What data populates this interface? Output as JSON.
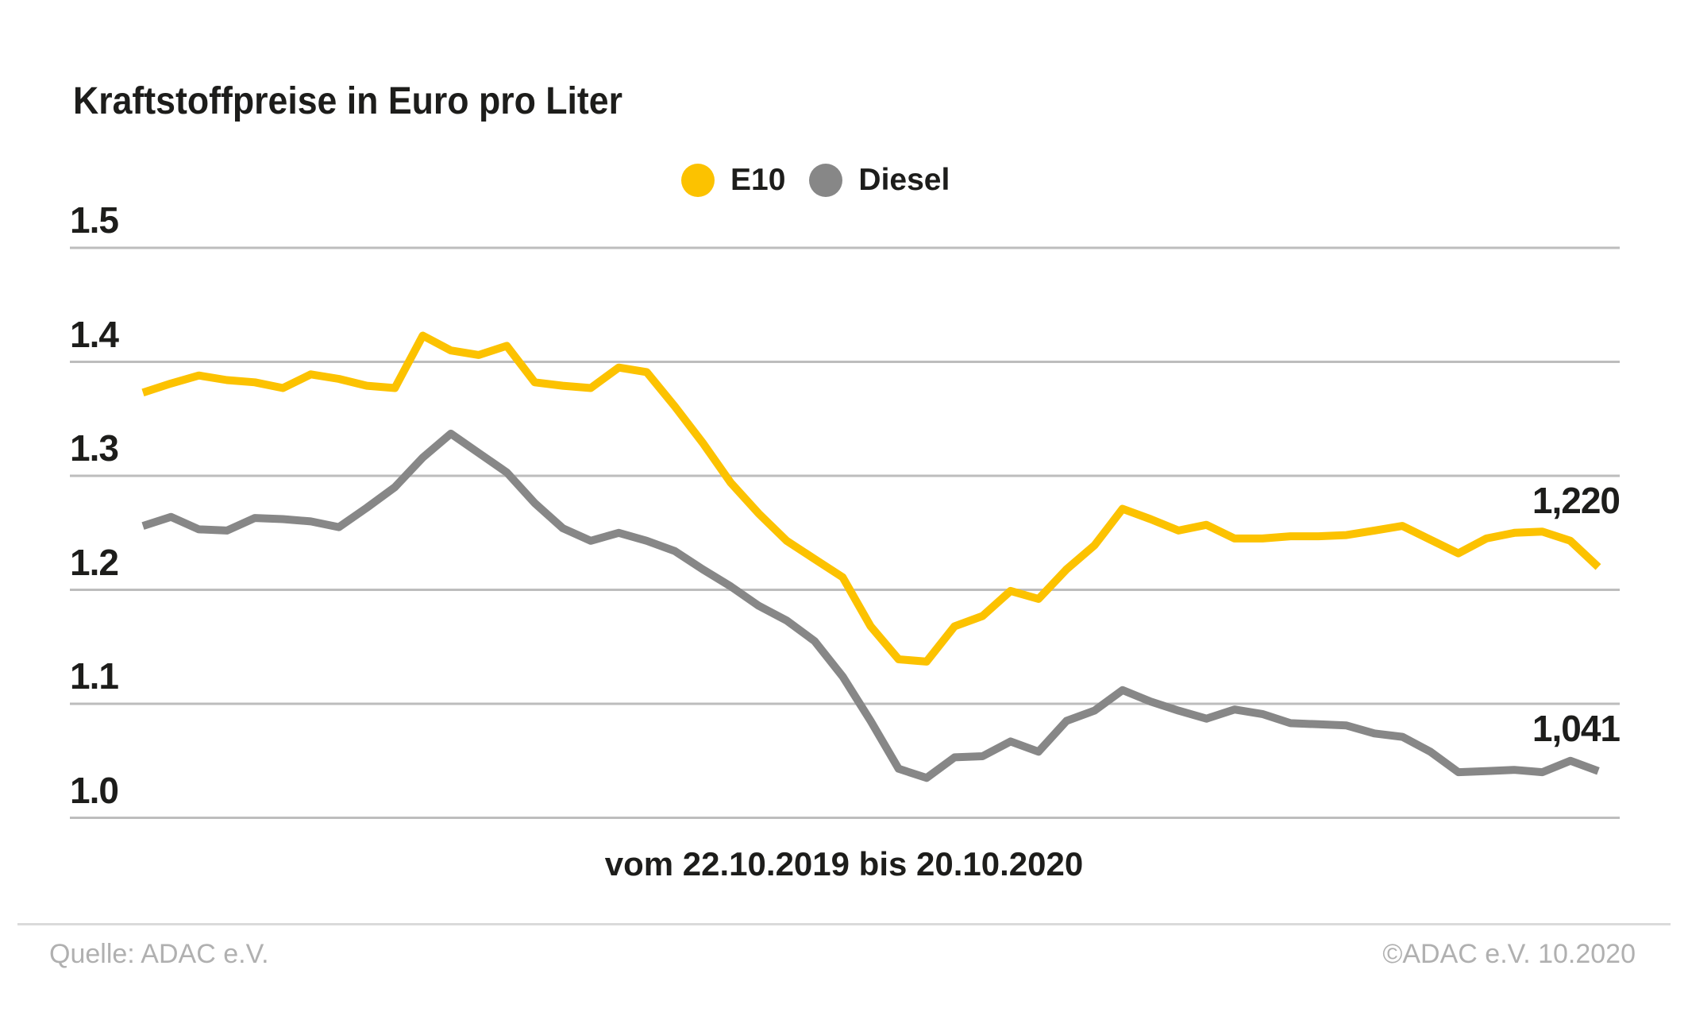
{
  "title": "Kraftstoffpreise in Euro pro Liter",
  "legend": {
    "items": [
      {
        "id": "e10",
        "label": "E10",
        "color": "#fcc200"
      },
      {
        "id": "diesel",
        "label": "Diesel",
        "color": "#878787"
      }
    ]
  },
  "x_axis_label": "vom 22.10.2019 bis 20.10.2020",
  "footer": {
    "source": "Quelle: ADAC e.V.",
    "copyright": "©ADAC e.V. 10.2020"
  },
  "colors": {
    "e10_line": "#fcc200",
    "diesel_line": "#878787",
    "gridline": "#bdbdbd",
    "text": "#1d1d1b",
    "footer_text": "#b0b0b0"
  },
  "chart_data": {
    "type": "line",
    "title": "Kraftstoffpreise in Euro pro Liter",
    "xlabel": "vom 22.10.2019 bis 20.10.2020",
    "ylabel": "Euro pro Liter",
    "x_start_date": "22.10.2019",
    "x_end_date": "20.10.2020",
    "x_interval": "weekly",
    "ylim": [
      1.0,
      1.5
    ],
    "yticks": [
      "1.5",
      "1.4",
      "1.3",
      "1.2",
      "1.1",
      "1.0"
    ],
    "grid": "horizontal",
    "legend_position": "top-center",
    "series": [
      {
        "name": "E10",
        "color": "#fcc200",
        "end_label": "1,220",
        "values": [
          1.373,
          1.381,
          1.388,
          1.384,
          1.382,
          1.377,
          1.389,
          1.385,
          1.379,
          1.377,
          1.423,
          1.41,
          1.406,
          1.414,
          1.382,
          1.379,
          1.377,
          1.395,
          1.391,
          1.361,
          1.329,
          1.294,
          1.267,
          1.243,
          1.227,
          1.211,
          1.168,
          1.139,
          1.137,
          1.168,
          1.177,
          1.199,
          1.192,
          1.218,
          1.239,
          1.271,
          1.262,
          1.252,
          1.257,
          1.245,
          1.245,
          1.247,
          1.247,
          1.248,
          1.252,
          1.256,
          1.244,
          1.232,
          1.245,
          1.25,
          1.251,
          1.243,
          1.22
        ]
      },
      {
        "name": "Diesel",
        "color": "#878787",
        "end_label": "1,041",
        "values": [
          1.256,
          1.264,
          1.253,
          1.252,
          1.263,
          1.262,
          1.26,
          1.255,
          1.272,
          1.29,
          1.316,
          1.337,
          1.32,
          1.303,
          1.276,
          1.254,
          1.243,
          1.25,
          1.243,
          1.234,
          1.218,
          1.203,
          1.186,
          1.173,
          1.155,
          1.124,
          1.085,
          1.043,
          1.035,
          1.053,
          1.054,
          1.067,
          1.058,
          1.085,
          1.094,
          1.112,
          1.102,
          1.094,
          1.087,
          1.095,
          1.091,
          1.083,
          1.082,
          1.081,
          1.074,
          1.071,
          1.058,
          1.04,
          1.041,
          1.042,
          1.04,
          1.05,
          1.041
        ]
      }
    ]
  }
}
